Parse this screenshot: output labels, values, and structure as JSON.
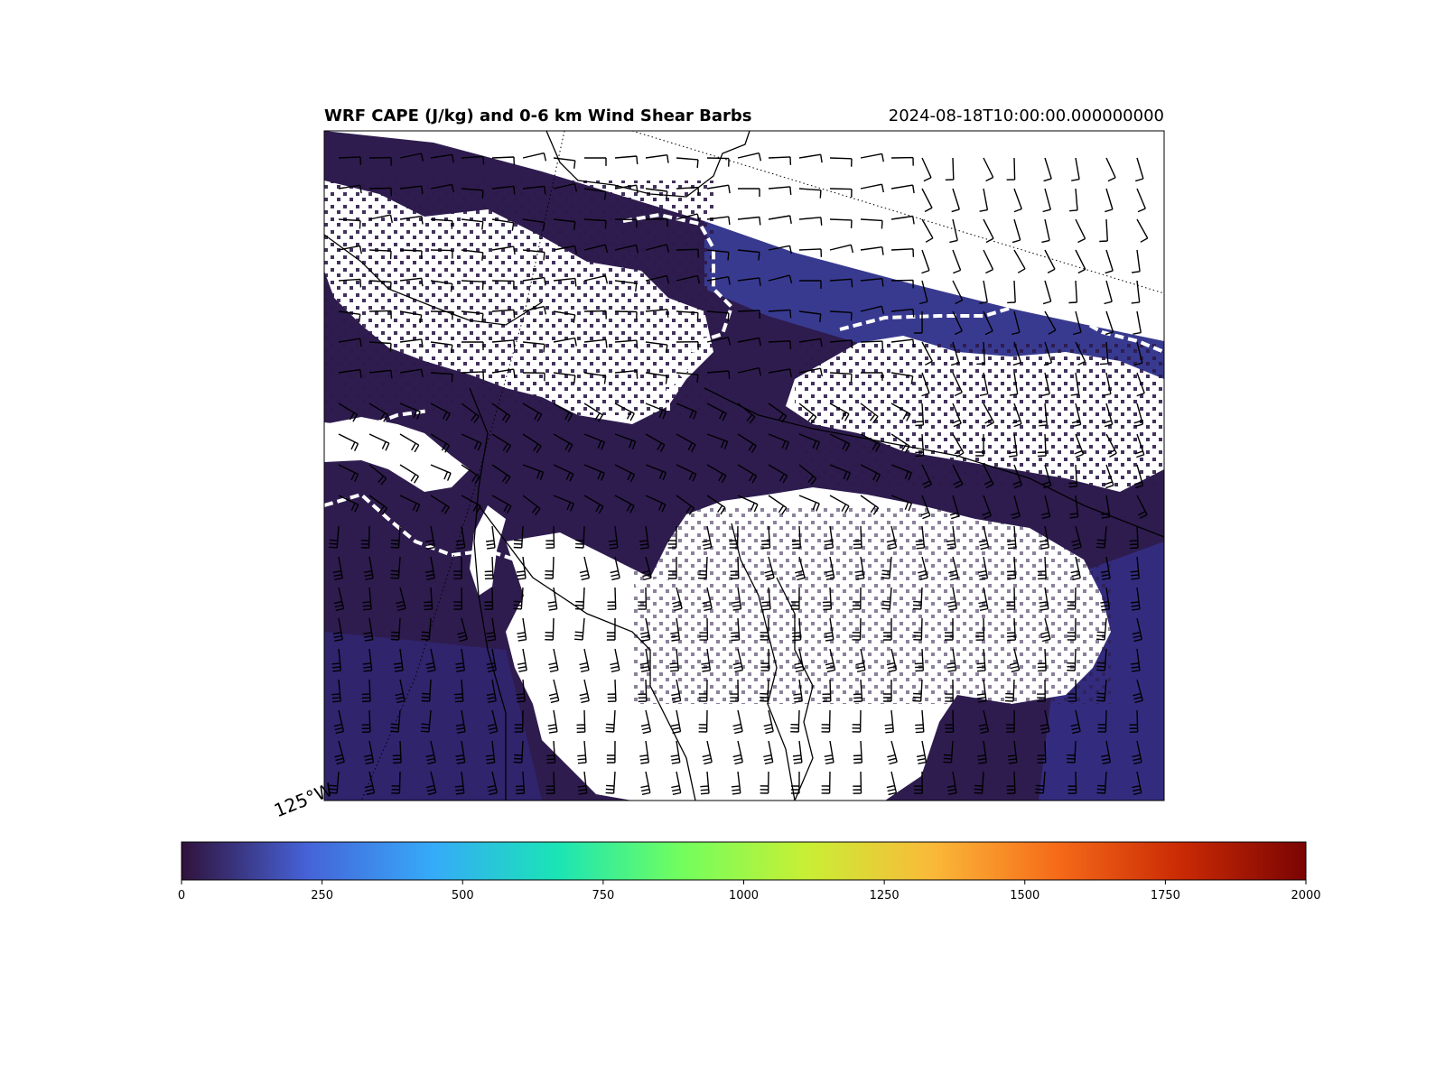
{
  "figure": {
    "title": "WRF CAPE (J/kg) and 0-6 km Wind Shear Barbs",
    "timestamp": "2024-08-18T10:00:00.000000000",
    "lon_label": "125°W"
  },
  "colorbar": {
    "colormap": "turbo",
    "min": 0,
    "max": 2000,
    "ticks": [
      "0",
      "250",
      "500",
      "750",
      "1000",
      "1250",
      "1500",
      "1750",
      "2000"
    ],
    "stops": [
      "#30123b",
      "#4662d7",
      "#36aaf9",
      "#1ae4b6",
      "#72fe5e",
      "#c8ef34",
      "#faba39",
      "#f66b19",
      "#ca2a04",
      "#7a0403"
    ]
  },
  "map": {
    "cape_fill_low": "#2d1a4a",
    "cape_fill_mid": "#3a3e98",
    "masked_color": "#ffffff",
    "contour_style": "white dashed",
    "barb_color": "#000000"
  }
}
